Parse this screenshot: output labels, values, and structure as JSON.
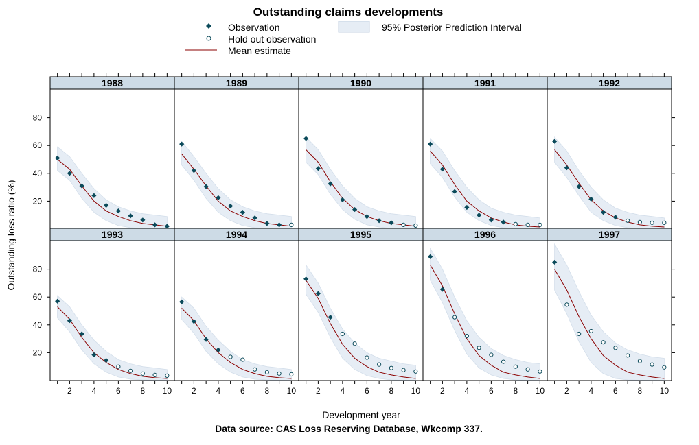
{
  "chart_data": {
    "type": "line",
    "title": "Outstanding claims developments",
    "xlabel": "Development year",
    "ylabel": "Outstanding loss ratio (%)",
    "caption": "Data source: CAS Loss Reserving Database, Wkcomp 337.",
    "xlim": [
      0.4,
      10.6
    ],
    "ylim": [
      0,
      100
    ],
    "x_ticks": [
      2,
      4,
      6,
      8,
      10
    ],
    "y_ticks": [
      20,
      40,
      60,
      80
    ],
    "grid": false,
    "legend": {
      "placement": "top",
      "observation": "Observation",
      "holdout": "Hold out observation",
      "mean": "Mean estimate",
      "interval": "95% Posterior Prediction Interval"
    },
    "colors": {
      "observation": "#0b4a5a",
      "mean": "#8b0000",
      "interval": "#e6edf5",
      "strip": "#cddbe6"
    },
    "panels": [
      {
        "name": "1988",
        "n_obs": 10,
        "observed": [
          51,
          40,
          31,
          24,
          17,
          13,
          9.5,
          6.5,
          3,
          2
        ],
        "mean": [
          50,
          43,
          31,
          20,
          13,
          9,
          6,
          4,
          3,
          2
        ],
        "lower": [
          42,
          35,
          22,
          12,
          6,
          2.5,
          1,
          0.5,
          0.3,
          0.2
        ],
        "upper": [
          59,
          52,
          40,
          29,
          21,
          16,
          13,
          11,
          10,
          9
        ]
      },
      {
        "name": "1989",
        "n_obs": 9,
        "observed": [
          61,
          42,
          30.5,
          22.5,
          16.5,
          12,
          8,
          4,
          3,
          3
        ],
        "mean": [
          54,
          43,
          31,
          20,
          13,
          9,
          6,
          4,
          3,
          2
        ],
        "lower": [
          46,
          35,
          22,
          12,
          6,
          2.5,
          1,
          0.5,
          0.3,
          0.2
        ],
        "upper": [
          63,
          52,
          40,
          29,
          21,
          16,
          13,
          11,
          10,
          9
        ]
      },
      {
        "name": "1990",
        "n_obs": 8,
        "observed": [
          65,
          43.5,
          32.5,
          21,
          14,
          9,
          6,
          4.5,
          3,
          2.5
        ],
        "mean": [
          57,
          48,
          34,
          22,
          14,
          9,
          6,
          4,
          3,
          2
        ],
        "lower": [
          48,
          39,
          25,
          14,
          7,
          3,
          1.5,
          0.5,
          0.3,
          0.2
        ],
        "upper": [
          66,
          57,
          43,
          31,
          22,
          16,
          13,
          11,
          10,
          9
        ]
      },
      {
        "name": "1991",
        "n_obs": 7,
        "observed": [
          61,
          43,
          27,
          15.5,
          10,
          6.5,
          5,
          3.5,
          3,
          3
        ],
        "mean": [
          56,
          46,
          32,
          20,
          13,
          8,
          5,
          3,
          2,
          1.5
        ],
        "lower": [
          47,
          37,
          23,
          12,
          6,
          2.5,
          1,
          0.5,
          0.3,
          0.2
        ],
        "upper": [
          65,
          56,
          42,
          30,
          21,
          15,
          12,
          10,
          9,
          8
        ]
      },
      {
        "name": "1992",
        "n_obs": 6,
        "observed": [
          63,
          44,
          30.5,
          21.5,
          12,
          8.5,
          6,
          5,
          4.5,
          4.5
        ],
        "mean": [
          57,
          46,
          33,
          21,
          13,
          8,
          5,
          3,
          2,
          1.5
        ],
        "lower": [
          48,
          37,
          24,
          12,
          6,
          2.5,
          1,
          0.5,
          0.3,
          0.2
        ],
        "upper": [
          66,
          56,
          42,
          30,
          21,
          15,
          12,
          10,
          9,
          8
        ]
      },
      {
        "name": "1993",
        "n_obs": 5,
        "observed": [
          57,
          43,
          33.5,
          18.5,
          14.5,
          10,
          7,
          5,
          4,
          3.5
        ],
        "mean": [
          53,
          44,
          31,
          20,
          13,
          8,
          5,
          3,
          2,
          1.5
        ],
        "lower": [
          45,
          35,
          22,
          12,
          6,
          2.5,
          1,
          0.5,
          0.3,
          0.2
        ],
        "upper": [
          61,
          53,
          40,
          29,
          21,
          15,
          12,
          10,
          9,
          8
        ]
      },
      {
        "name": "1994",
        "n_obs": 4,
        "observed": [
          56.5,
          42.5,
          29.5,
          22,
          17,
          15,
          8,
          6,
          5,
          4.5
        ],
        "mean": [
          52,
          43,
          30,
          20,
          13,
          8,
          5,
          3,
          2,
          1.5
        ],
        "lower": [
          44,
          34,
          21,
          12,
          6,
          2.5,
          1,
          0.5,
          0.3,
          0.2
        ],
        "upper": [
          60,
          52,
          39,
          29,
          21,
          15,
          12,
          10,
          9,
          8
        ]
      },
      {
        "name": "1995",
        "n_obs": 3,
        "observed": [
          73,
          62.5,
          45.5,
          33.5,
          26.5,
          16.5,
          11.5,
          9,
          7.5,
          6.5
        ],
        "mean": [
          72,
          59,
          41,
          26,
          16,
          10,
          6,
          4,
          2.5,
          1.5
        ],
        "lower": [
          62,
          49,
          31,
          16,
          8,
          3.5,
          1.5,
          0.5,
          0.3,
          0.2
        ],
        "upper": [
          83,
          70,
          52,
          37,
          27,
          20,
          16,
          14,
          12,
          11
        ]
      },
      {
        "name": "1996",
        "n_obs": 2,
        "observed": [
          89,
          65.5,
          45.5,
          32,
          23.5,
          18.5,
          13.5,
          10,
          8,
          6.5
        ],
        "mean": [
          83,
          68,
          48,
          30,
          18,
          11,
          6,
          4,
          2.5,
          1.5
        ],
        "lower": [
          72,
          56,
          36,
          19,
          9,
          4,
          1.5,
          0.5,
          0.3,
          0.2
        ],
        "upper": [
          95,
          80,
          60,
          43,
          31,
          23,
          18,
          15,
          13,
          12
        ]
      },
      {
        "name": "1997",
        "n_obs": 1,
        "observed": [
          85,
          54.5,
          33.5,
          35.5,
          27.5,
          23.5,
          18,
          14,
          11.5,
          9.5
        ],
        "mean": [
          80,
          65,
          46,
          30,
          18,
          11,
          6,
          4,
          2.5,
          1.5
        ],
        "lower": [
          65,
          48,
          28,
          13,
          5,
          1.5,
          0.5,
          0.3,
          0.2,
          0.1
        ],
        "upper": [
          98,
          83,
          64,
          47,
          35,
          27,
          22,
          19,
          17,
          16
        ]
      }
    ]
  }
}
